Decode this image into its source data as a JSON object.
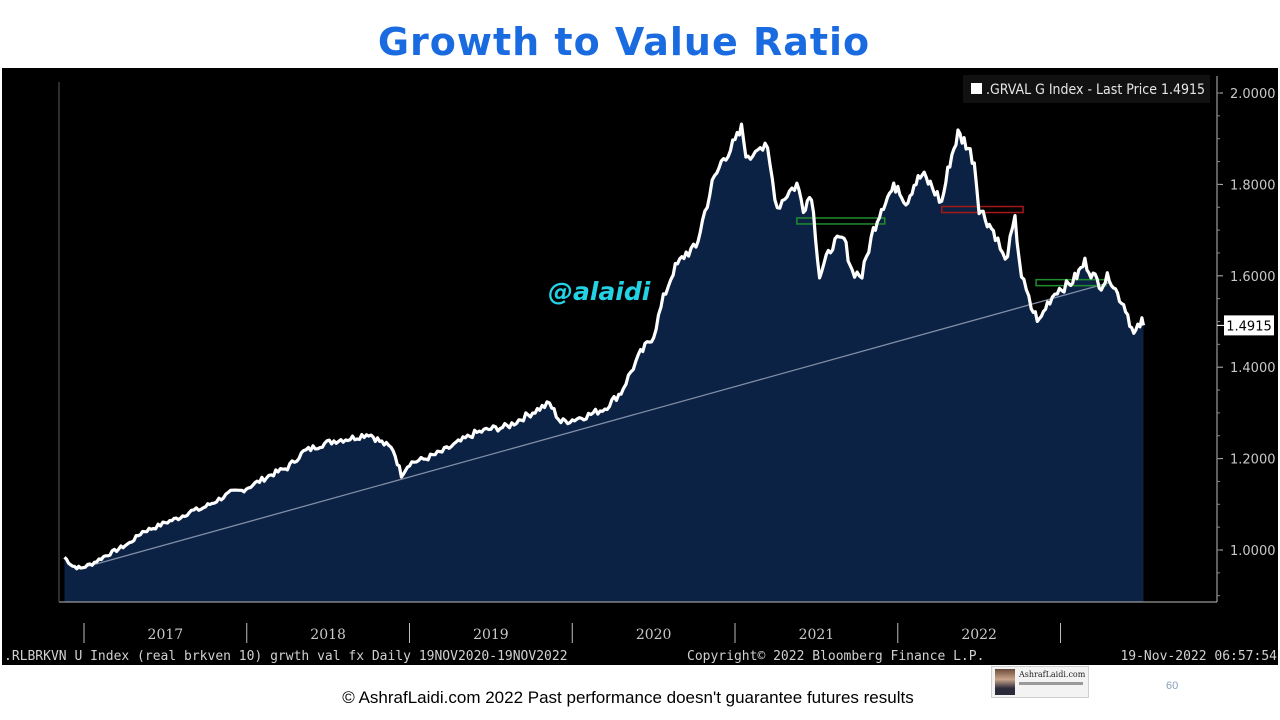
{
  "slide": {
    "title": "Growth to Value Ratio",
    "watermark": "@alaidi",
    "footer": "© AshrafLaidi.com 2022 Past performance doesn't guarantee futures results",
    "page_number": "60",
    "logo_text": "AshrafLaidi.com"
  },
  "colors": {
    "title": "#1a6be0",
    "background": "#000000",
    "price_line": "#ffffff",
    "area_fill": "#0c2244",
    "trendline": "#7f8da6",
    "support_line": "#1e8c2e",
    "resistance_line": "#a31818",
    "watermark": "#22d3e6",
    "axis_text": "#c8c8c8"
  },
  "chart_data": {
    "type": "area",
    "legend": ".GRVAL G Index - Last Price 1.4915",
    "legend_position": "top-right",
    "last_price": "1.4915",
    "bottom_left_label": ".RLBRKVN U Index (real brkven 10) grwth val fx  Daily 19NOV2020-19NOV2022",
    "bottom_center_label": "Copyright© 2022 Bloomberg Finance L.P.",
    "bottom_right_label": "19-Nov-2022 06:57:54",
    "ylim": [
      0.9,
      2.05
    ],
    "xlim": [
      2016.0,
      2022.9
    ],
    "y_ticks": [
      {
        "value": 1.0,
        "label": "1.0000"
      },
      {
        "value": 1.2,
        "label": "1.2000"
      },
      {
        "value": 1.4,
        "label": "1.4000"
      },
      {
        "value": 1.6,
        "label": "1.6000"
      },
      {
        "value": 1.8,
        "label": "1.8000"
      },
      {
        "value": 2.0,
        "label": "2.0000"
      }
    ],
    "year_boundaries": [
      2016.0,
      2017.0,
      2018.0,
      2019.0,
      2020.0,
      2021.0,
      2022.0
    ],
    "x_labels": [
      {
        "value": 2016.5,
        "label": "2017"
      },
      {
        "value": 2017.5,
        "label": "2018"
      },
      {
        "value": 2018.5,
        "label": "2019"
      },
      {
        "value": 2019.5,
        "label": "2020"
      },
      {
        "value": 2020.5,
        "label": "2021"
      },
      {
        "value": 2021.5,
        "label": "2022"
      }
    ],
    "series": [
      {
        "values": [
          [
            2015.88,
            0.984
          ],
          [
            2015.93,
            0.965
          ],
          [
            2015.98,
            0.96
          ],
          [
            2016.05,
            0.97
          ],
          [
            2016.12,
            0.985
          ],
          [
            2016.2,
            1.0
          ],
          [
            2016.28,
            1.015
          ],
          [
            2016.36,
            1.04
          ],
          [
            2016.44,
            1.05
          ],
          [
            2016.5,
            1.06
          ],
          [
            2016.58,
            1.07
          ],
          [
            2016.66,
            1.085
          ],
          [
            2016.72,
            1.09
          ],
          [
            2016.8,
            1.105
          ],
          [
            2016.9,
            1.125
          ],
          [
            2016.97,
            1.13
          ],
          [
            2017.05,
            1.145
          ],
          [
            2017.15,
            1.165
          ],
          [
            2017.25,
            1.18
          ],
          [
            2017.35,
            1.215
          ],
          [
            2017.45,
            1.23
          ],
          [
            2017.55,
            1.24
          ],
          [
            2017.65,
            1.245
          ],
          [
            2017.75,
            1.255
          ],
          [
            2017.83,
            1.235
          ],
          [
            2017.9,
            1.22
          ],
          [
            2017.95,
            1.165
          ],
          [
            2018.0,
            1.19
          ],
          [
            2018.1,
            1.2
          ],
          [
            2018.2,
            1.215
          ],
          [
            2018.3,
            1.235
          ],
          [
            2018.4,
            1.255
          ],
          [
            2018.5,
            1.265
          ],
          [
            2018.6,
            1.27
          ],
          [
            2018.7,
            1.29
          ],
          [
            2018.8,
            1.31
          ],
          [
            2018.86,
            1.32
          ],
          [
            2018.93,
            1.28
          ],
          [
            2019.0,
            1.285
          ],
          [
            2019.1,
            1.295
          ],
          [
            2019.2,
            1.31
          ],
          [
            2019.3,
            1.345
          ],
          [
            2019.36,
            1.39
          ],
          [
            2019.42,
            1.43
          ],
          [
            2019.5,
            1.47
          ],
          [
            2019.56,
            1.55
          ],
          [
            2019.62,
            1.61
          ],
          [
            2019.7,
            1.65
          ],
          [
            2019.76,
            1.66
          ],
          [
            2019.8,
            1.72
          ],
          [
            2019.86,
            1.8
          ],
          [
            2019.93,
            1.86
          ],
          [
            2020.0,
            1.89
          ],
          [
            2020.04,
            1.92
          ],
          [
            2020.08,
            1.85
          ],
          [
            2020.14,
            1.89
          ],
          [
            2020.2,
            1.87
          ],
          [
            2020.26,
            1.75
          ],
          [
            2020.32,
            1.78
          ],
          [
            2020.38,
            1.8
          ],
          [
            2020.42,
            1.75
          ],
          [
            2020.47,
            1.78
          ],
          [
            2020.52,
            1.6
          ],
          [
            2020.6,
            1.67
          ],
          [
            2020.67,
            1.68
          ],
          [
            2020.72,
            1.61
          ],
          [
            2020.78,
            1.6
          ],
          [
            2020.85,
            1.7
          ],
          [
            2020.9,
            1.75
          ],
          [
            2020.95,
            1.78
          ],
          [
            2021.0,
            1.8
          ],
          [
            2021.05,
            1.76
          ],
          [
            2021.1,
            1.8
          ],
          [
            2021.15,
            1.82
          ],
          [
            2021.2,
            1.8
          ],
          [
            2021.27,
            1.76
          ],
          [
            2021.32,
            1.85
          ],
          [
            2021.37,
            1.91
          ],
          [
            2021.42,
            1.89
          ],
          [
            2021.47,
            1.85
          ],
          [
            2021.5,
            1.75
          ],
          [
            2021.55,
            1.72
          ],
          [
            2021.6,
            1.69
          ],
          [
            2021.66,
            1.63
          ],
          [
            2021.72,
            1.72
          ],
          [
            2021.76,
            1.6
          ],
          [
            2021.82,
            1.53
          ],
          [
            2021.87,
            1.5
          ],
          [
            2021.92,
            1.54
          ],
          [
            2021.98,
            1.57
          ],
          [
            2022.05,
            1.58
          ],
          [
            2022.1,
            1.6
          ],
          [
            2022.15,
            1.63
          ],
          [
            2022.2,
            1.6
          ],
          [
            2022.25,
            1.58
          ],
          [
            2022.3,
            1.6
          ],
          [
            2022.35,
            1.56
          ],
          [
            2022.4,
            1.53
          ],
          [
            2022.45,
            1.47
          ],
          [
            2022.5,
            1.5
          ],
          [
            2022.51,
            1.4915
          ]
        ]
      }
    ],
    "trendline": [
      [
        2015.95,
        0.957
      ],
      [
        2022.3,
        1.585
      ]
    ],
    "support_lines": [
      {
        "y": 1.72,
        "x": [
          2020.38,
          2020.92
        ]
      },
      {
        "y": 1.585,
        "x": [
          2021.85,
          2022.28
        ]
      }
    ],
    "resistance_lines": [
      {
        "y": 1.745,
        "x": [
          2021.27,
          2021.77
        ]
      }
    ]
  }
}
